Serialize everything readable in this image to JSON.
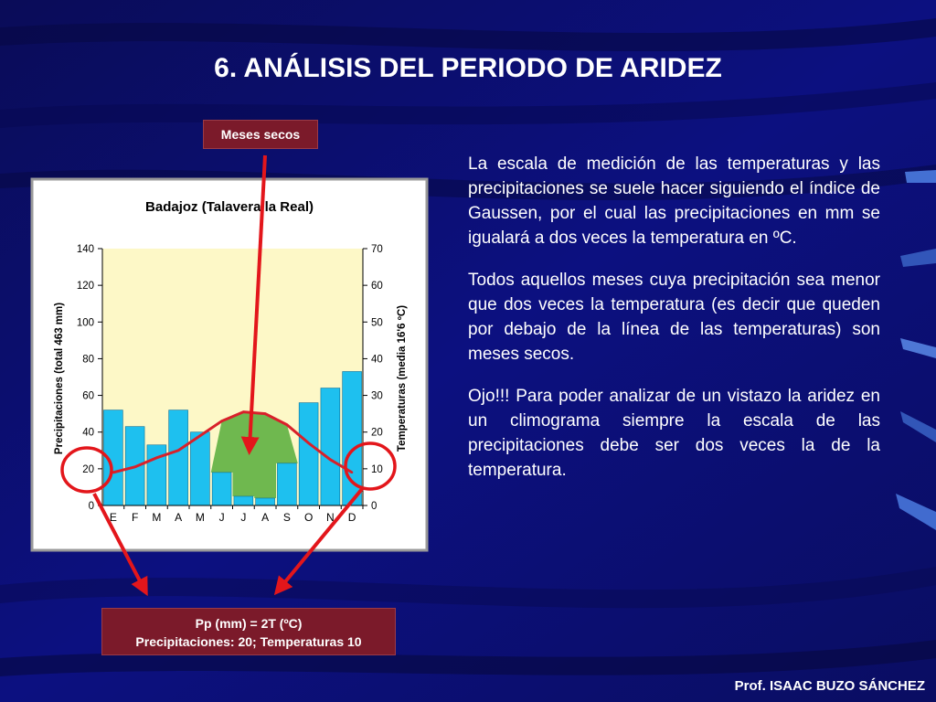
{
  "slide": {
    "title": "6. ANÁLISIS DEL PERIODO DE ARIDEZ",
    "callout_dry_months": "Meses secos",
    "callout_rule_line1": "Pp (mm) = 2T (ºC)",
    "callout_rule_line2": "Precipitaciones: 20; Temperaturas 10",
    "paragraphs": [
      "La escala de medición de las temperaturas y las precipitaciones se suele hacer siguiendo el índice de Gaussen, por el cual las precipitaciones en mm se igualará a dos veces la temperatura en ºC.",
      "Todos aquellos meses cuya precipitación sea menor que dos veces la temperatura (es decir que queden por debajo de la línea de las temperaturas) son meses secos.",
      "Ojo!!! Para poder analizar de un vistazo la aridez en un climograma siempre la escala de las precipitaciones debe ser dos veces la de la temperatura."
    ],
    "footer": "Prof. ISAAC BUZO SÁNCHEZ",
    "colors": {
      "background": "#0b0e6e",
      "callout": "#7b1a2a",
      "annotation": "#e3161b",
      "bars": "#1ec0ef",
      "temp_line": "#d8202a",
      "dry_area": "#6fb84f",
      "plot_bg": "#fdf8c7"
    }
  },
  "chart_data": {
    "type": "bar",
    "title": "Badajoz (Talavera la Real)",
    "categories": [
      "E",
      "F",
      "M",
      "A",
      "M",
      "J",
      "J",
      "A",
      "S",
      "O",
      "N",
      "D"
    ],
    "series": [
      {
        "name": "Precipitaciones",
        "type": "bar",
        "axis": "left",
        "values": [
          52,
          43,
          33,
          52,
          40,
          18,
          5,
          4,
          23,
          56,
          64,
          73
        ]
      },
      {
        "name": "Temperaturas",
        "type": "line",
        "axis": "right",
        "values": [
          9,
          10.5,
          13,
          15,
          19,
          23,
          25.5,
          25,
          22,
          17,
          12.5,
          9
        ]
      }
    ],
    "ylabel": "Precipitaciones (total 463 mm)",
    "y2label": "Temperaturas (media 16'6 ºC)",
    "ylim": [
      0,
      140
    ],
    "y2lim": [
      0,
      70
    ],
    "yticks": [
      0,
      20,
      40,
      60,
      80,
      100,
      120,
      140
    ],
    "y2ticks": [
      0,
      10,
      20,
      30,
      40,
      50,
      60,
      70
    ],
    "grid": false,
    "legend": "none"
  }
}
